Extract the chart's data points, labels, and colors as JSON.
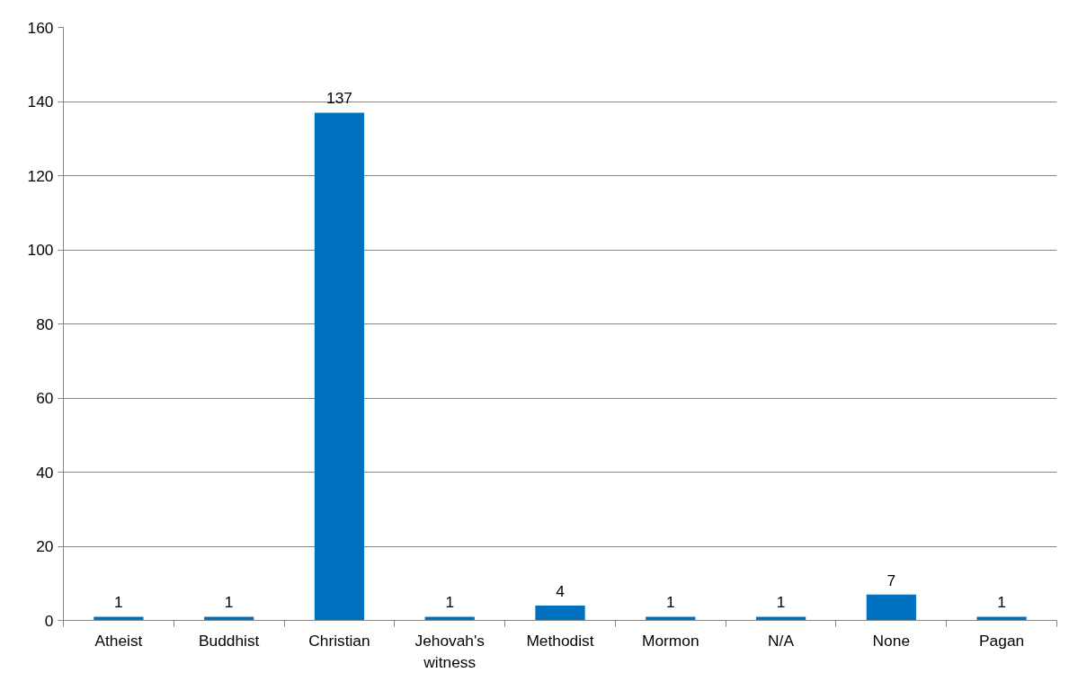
{
  "chart_data": {
    "type": "bar",
    "categories": [
      "Atheist",
      "Buddhist",
      "Christian",
      "Jehovah's witness",
      "Methodist",
      "Mormon",
      "N/A",
      "None",
      "Pagan"
    ],
    "values": [
      1,
      1,
      137,
      1,
      4,
      1,
      1,
      7,
      1
    ],
    "color": "#0070c0",
    "data_labels": true,
    "ylim": [
      0,
      160
    ],
    "yticks": [
      0,
      20,
      40,
      60,
      80,
      100,
      120,
      140,
      160
    ],
    "grid": "y"
  }
}
